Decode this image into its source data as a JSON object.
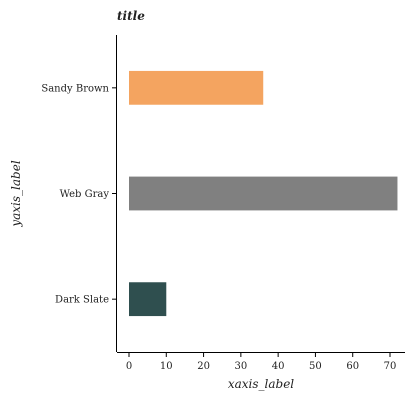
{
  "chart_data": {
    "type": "bar",
    "orientation": "horizontal",
    "title": "title",
    "xlabel": "xaxis_label",
    "ylabel": "yaxis_label",
    "categories": [
      "Dark Slate",
      "Web Gray",
      "Sandy Brown"
    ],
    "values": [
      10,
      72,
      36
    ],
    "colors": [
      "#2f4f4f",
      "#808080",
      "#f4a460"
    ],
    "xlim": [
      0,
      75
    ],
    "xticks": [
      0,
      10,
      20,
      30,
      40,
      50,
      60,
      70
    ],
    "grid": false,
    "legend": "none"
  }
}
